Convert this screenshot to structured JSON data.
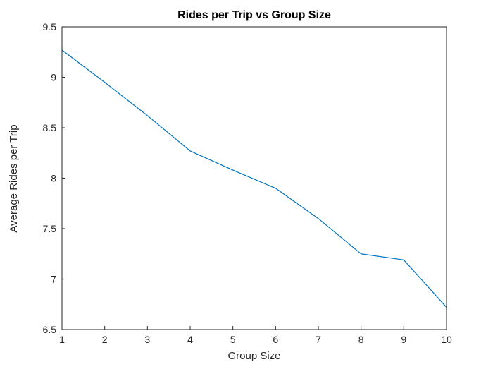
{
  "chart_data": {
    "type": "line",
    "title": "Rides per Trip vs Group Size",
    "xlabel": "Group Size",
    "ylabel": "Average Rides per Trip",
    "x": [
      1,
      2,
      3,
      4,
      5,
      6,
      7,
      8,
      9,
      10
    ],
    "y": [
      9.27,
      8.95,
      8.62,
      8.27,
      8.08,
      7.9,
      7.6,
      7.25,
      7.19,
      6.72
    ],
    "xlim": [
      1,
      10
    ],
    "ylim": [
      6.5,
      9.5
    ],
    "xticks": [
      1,
      2,
      3,
      4,
      5,
      6,
      7,
      8,
      9,
      10
    ],
    "yticks": [
      6.5,
      7,
      7.5,
      8,
      8.5,
      9,
      9.5
    ],
    "line_color": "#0072BD",
    "axis_color": "#262626",
    "background_color": "#ffffff",
    "grid": false,
    "legend": null
  }
}
